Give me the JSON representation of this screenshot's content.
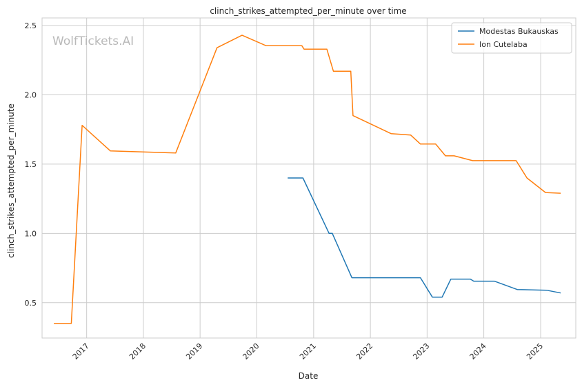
{
  "chart_data": {
    "type": "line",
    "title": "clinch_strikes_attempted_per_minute over time",
    "xlabel": "Date",
    "ylabel": "clinch_strikes_attempted_per_minute",
    "watermark": "WolfTickets.AI",
    "x_tick_labels": [
      "2017",
      "2018",
      "2019",
      "2020",
      "2021",
      "2022",
      "2023",
      "2024",
      "2025"
    ],
    "y_tick_labels": [
      "0.5",
      "1.0",
      "1.5",
      "2.0",
      "2.5"
    ],
    "y_ticks": [
      0.5,
      1.0,
      1.5,
      2.0,
      2.5
    ],
    "xlim": [
      "2016-03-20",
      "2025-08-15"
    ],
    "ylim": [
      0.245,
      2.555
    ],
    "grid": true,
    "legend_position": "top-right",
    "series": [
      {
        "name": "Modestas Bukauskas",
        "color": "#1f77b4",
        "points": [
          [
            "2020-07-18",
            1.4
          ],
          [
            "2020-10-24",
            1.4
          ],
          [
            "2021-04-10",
            1.0
          ],
          [
            "2021-05-01",
            1.0
          ],
          [
            "2021-09-04",
            0.68
          ],
          [
            "2022-11-19",
            0.68
          ],
          [
            "2023-02-04",
            0.54
          ],
          [
            "2023-04-08",
            0.54
          ],
          [
            "2023-06-03",
            0.67
          ],
          [
            "2023-10-07",
            0.67
          ],
          [
            "2023-10-28",
            0.655
          ],
          [
            "2024-03-09",
            0.655
          ],
          [
            "2024-08-03",
            0.595
          ],
          [
            "2025-02-08",
            0.59
          ],
          [
            "2025-05-10",
            0.57
          ]
        ]
      },
      {
        "name": "Ion Cutelaba",
        "color": "#ff7f0e",
        "points": [
          [
            "2016-06-04",
            0.35
          ],
          [
            "2016-09-24",
            0.35
          ],
          [
            "2016-12-03",
            1.78
          ],
          [
            "2017-06-03",
            1.595
          ],
          [
            "2018-07-28",
            1.58
          ],
          [
            "2019-04-20",
            2.34
          ],
          [
            "2019-09-28",
            2.43
          ],
          [
            "2020-02-29",
            2.355
          ],
          [
            "2020-10-17",
            2.355
          ],
          [
            "2020-10-31",
            2.33
          ],
          [
            "2021-03-27",
            2.33
          ],
          [
            "2021-05-08",
            2.17
          ],
          [
            "2021-08-28",
            2.17
          ],
          [
            "2021-09-11",
            1.85
          ],
          [
            "2022-05-14",
            1.72
          ],
          [
            "2022-09-17",
            1.71
          ],
          [
            "2022-11-19",
            1.645
          ],
          [
            "2023-02-25",
            1.645
          ],
          [
            "2023-04-29",
            1.56
          ],
          [
            "2023-06-24",
            1.56
          ],
          [
            "2023-10-21",
            1.525
          ],
          [
            "2024-07-27",
            1.525
          ],
          [
            "2024-10-05",
            1.4
          ],
          [
            "2025-02-01",
            1.295
          ],
          [
            "2025-05-10",
            1.29
          ]
        ]
      }
    ]
  }
}
